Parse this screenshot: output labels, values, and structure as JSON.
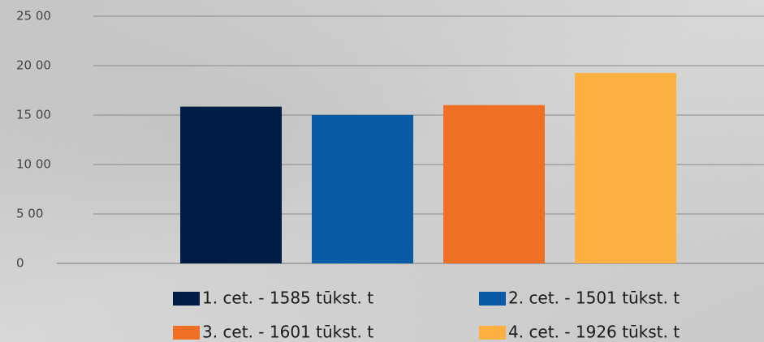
{
  "chart_data": {
    "type": "bar",
    "series": [
      {
        "name": "1. cet. - 1585 tūkst. t",
        "color": "#001e45",
        "values": [
          1585
        ]
      },
      {
        "name": "2. cet. - 1501 tūkst. t",
        "color": "#0b5aa6",
        "values": [
          1501
        ]
      },
      {
        "name": "3. cet. - 1601 tūkst. t",
        "color": "#ef7024",
        "values": [
          1601
        ]
      },
      {
        "name": "4. cet. - 1926 tūkst. t",
        "color": "#fbb040",
        "values": [
          1926
        ]
      }
    ],
    "ylim": [
      0,
      2500
    ],
    "yticks": [
      0,
      {
        "value": 500,
        "label": "5 00"
      },
      {
        "value": 1000,
        "label": "10 00"
      },
      {
        "value": 1500,
        "label": "15 00"
      },
      {
        "value": 2000,
        "label": "20 00"
      },
      {
        "value": 2500,
        "label": "25 00"
      }
    ],
    "grid": true
  }
}
